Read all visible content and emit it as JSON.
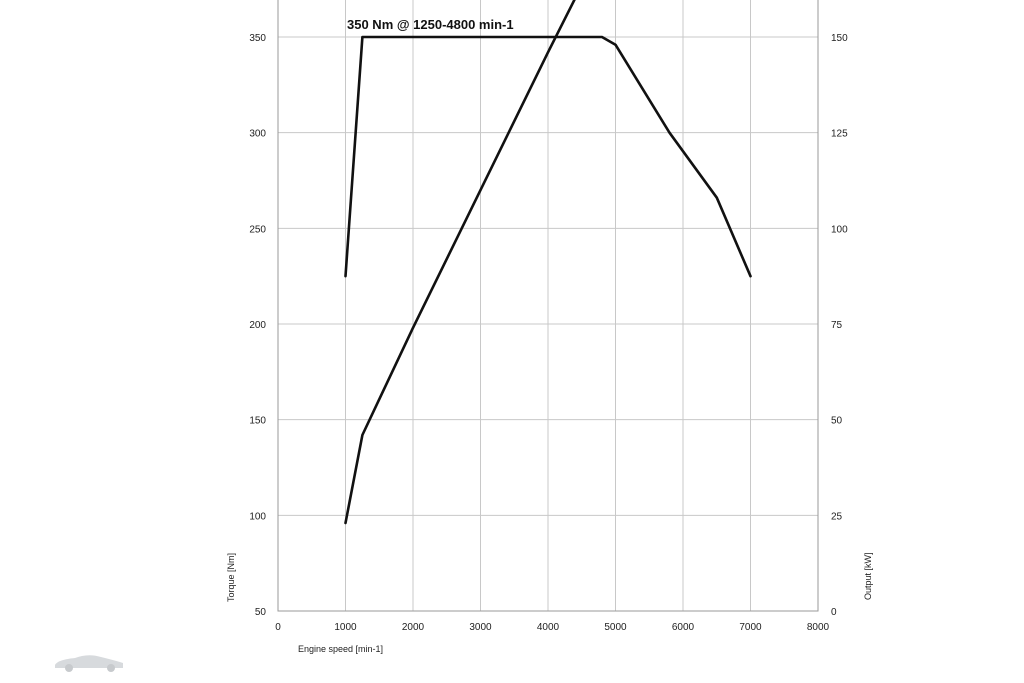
{
  "chart_data": {
    "type": "line",
    "annotation": "350 Nm @ 1250-4800 min-1",
    "xlabel": "Engine speed [min-1]",
    "ylabel_left": "Torque [Nm]",
    "ylabel_right": "Output [kW]",
    "xlim": [
      0,
      8000
    ],
    "ylim_left": [
      50,
      350
    ],
    "ylim_right": [
      0,
      150
    ],
    "x_ticks": [
      "0",
      "1000",
      "2000",
      "3000",
      "4000",
      "5000",
      "6000",
      "7000",
      "8000"
    ],
    "y_ticks_left": [
      "50",
      "100",
      "150",
      "200",
      "250",
      "300",
      "350"
    ],
    "y_ticks_right": [
      "0",
      "25",
      "50",
      "75",
      "100",
      "125",
      "150"
    ],
    "grid": true,
    "series": [
      {
        "axis": "left",
        "x": [
          1000,
          1250,
          4800,
          5000,
          5800,
          6500,
          7000
        ],
        "y": [
          225,
          350,
          350,
          346,
          300,
          266,
          225
        ]
      },
      {
        "axis": "right",
        "x": [
          1000,
          1250,
          2000,
          3000,
          4000,
          4400
        ],
        "y": [
          23,
          46,
          74,
          110,
          146,
          160
        ]
      }
    ]
  },
  "logo": {
    "name": "car-logo-icon"
  }
}
